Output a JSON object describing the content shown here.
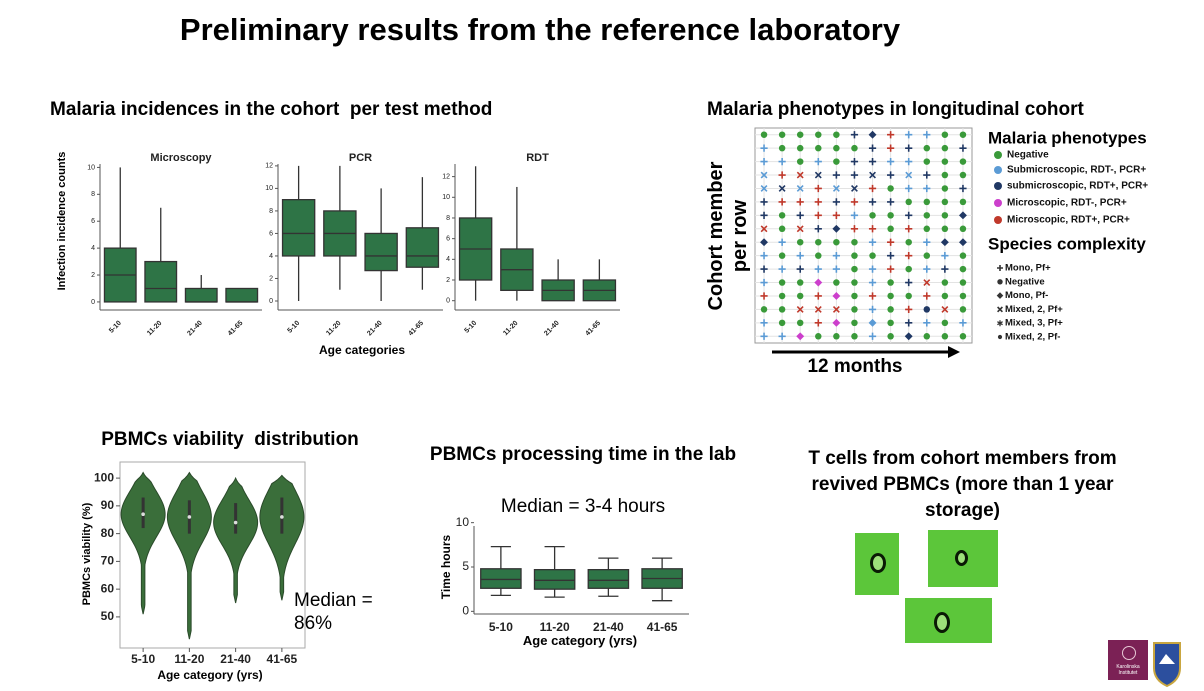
{
  "title": "Preliminary results from the reference laboratory",
  "incidence": {
    "title": "Malaria incidences in the cohort  per test method",
    "ylabel": "Infection incidence counts",
    "xlabel": "Age categories"
  },
  "tcells": {
    "title": "T cells from cohort members from revived PBMCs (more than 1 year storage)"
  },
  "logo": {
    "text": "Karolinska Institutet"
  },
  "chart_data": [
    {
      "type": "box",
      "title": "Microscopy",
      "categories": [
        "5-10",
        "11-20",
        "21-40",
        "41-65"
      ],
      "values": [
        [
          0,
          0,
          2,
          4,
          10
        ],
        [
          0,
          0,
          1,
          3,
          7
        ],
        [
          0,
          0,
          0,
          1,
          2
        ],
        [
          0,
          0,
          0,
          1,
          1
        ]
      ],
      "color": "#2e7446",
      "ylim": [
        -0.6,
        10.7
      ],
      "yticks": [
        0,
        2,
        4,
        6,
        8,
        10
      ]
    },
    {
      "type": "box",
      "title": "PCR",
      "categories": [
        "5-10",
        "11-20",
        "21-40",
        "41-65"
      ],
      "values": [
        [
          0,
          4,
          6,
          9,
          12
        ],
        [
          1,
          4,
          6,
          8,
          12
        ],
        [
          0,
          2.7,
          4,
          6,
          10
        ],
        [
          1,
          3,
          4,
          6.5,
          11
        ]
      ],
      "color": "#2e7446",
      "ylim": [
        -0.8,
        12.7
      ],
      "yticks": [
        0,
        2,
        4,
        6,
        8,
        10,
        12
      ]
    },
    {
      "type": "box",
      "title": "RDT",
      "categories": [
        "5-10",
        "11-20",
        "21-40",
        "41-65"
      ],
      "values": [
        [
          0,
          2,
          5,
          8,
          13
        ],
        [
          0,
          1,
          3,
          5,
          11
        ],
        [
          0,
          0,
          1,
          2,
          4
        ],
        [
          0,
          0,
          1,
          2,
          4
        ]
      ],
      "color": "#2e7446",
      "ylim": [
        -0.9,
        13.8
      ],
      "yticks": [
        0,
        2,
        4,
        6,
        8,
        10,
        12
      ]
    },
    {
      "type": "matrix",
      "title": "Malaria phenotypes in longitudinal cohort",
      "ylabel": "Cohort member per row",
      "xlabel": "12 months",
      "legend_title": "Malaria phenotypes",
      "phenotypes": [
        {
          "name": "Negative",
          "color": "#3a9a3a"
        },
        {
          "name": "Submicroscopic, RDT-, PCR+",
          "color": "#5b9bd5"
        },
        {
          "name": "submicroscopic, RDT+, PCR+",
          "color": "#203864"
        },
        {
          "name": "Microscopic, RDT-, PCR+",
          "color": "#cc3fcc"
        },
        {
          "name": "Microscopic, RDT+, PCR+",
          "color": "#c0392b"
        }
      ],
      "shape_legend_title": "Species complexity",
      "species": [
        {
          "name": "Mono, Pf+",
          "shape": "plus"
        },
        {
          "name": "Negative",
          "shape": "circle"
        },
        {
          "name": "Mono, Pf-",
          "shape": "diamond"
        },
        {
          "name": "Mixed, 2, Pf+",
          "shape": "cross"
        },
        {
          "name": "Mixed, 3, Pf+",
          "shape": "star"
        },
        {
          "name": "Mixed, 2, Pf-",
          "shape": "dot"
        }
      ],
      "cells": [
        [
          [
            0,
            1
          ],
          [
            0,
            1
          ],
          [
            0,
            1
          ],
          [
            0,
            1
          ],
          [
            0,
            1
          ],
          [
            2,
            0
          ],
          [
            2,
            2
          ],
          [
            4,
            0
          ],
          [
            1,
            0
          ],
          [
            1,
            0
          ],
          [
            0,
            1
          ],
          [
            0,
            1
          ]
        ],
        [
          [
            1,
            0
          ],
          [
            0,
            1
          ],
          [
            0,
            1
          ],
          [
            0,
            1
          ],
          [
            0,
            1
          ],
          [
            0,
            1
          ],
          [
            2,
            0
          ],
          [
            4,
            0
          ],
          [
            2,
            0
          ],
          [
            0,
            1
          ],
          [
            0,
            1
          ],
          [
            2,
            0
          ]
        ],
        [
          [
            1,
            0
          ],
          [
            1,
            0
          ],
          [
            0,
            1
          ],
          [
            1,
            0
          ],
          [
            0,
            1
          ],
          [
            2,
            0
          ],
          [
            2,
            0
          ],
          [
            1,
            0
          ],
          [
            1,
            0
          ],
          [
            0,
            1
          ],
          [
            0,
            1
          ],
          [
            0,
            1
          ]
        ],
        [
          [
            1,
            3
          ],
          [
            4,
            0
          ],
          [
            4,
            3
          ],
          [
            2,
            3
          ],
          [
            2,
            0
          ],
          [
            2,
            0
          ],
          [
            2,
            3
          ],
          [
            2,
            0
          ],
          [
            1,
            3
          ],
          [
            2,
            0
          ],
          [
            0,
            1
          ],
          [
            0,
            1
          ]
        ],
        [
          [
            1,
            3
          ],
          [
            2,
            3
          ],
          [
            1,
            3
          ],
          [
            4,
            0
          ],
          [
            1,
            3
          ],
          [
            2,
            3
          ],
          [
            4,
            0
          ],
          [
            0,
            1
          ],
          [
            1,
            0
          ],
          [
            1,
            0
          ],
          [
            0,
            1
          ],
          [
            2,
            0
          ]
        ],
        [
          [
            2,
            0
          ],
          [
            4,
            0
          ],
          [
            4,
            0
          ],
          [
            4,
            0
          ],
          [
            2,
            0
          ],
          [
            4,
            0
          ],
          [
            2,
            0
          ],
          [
            2,
            0
          ],
          [
            0,
            1
          ],
          [
            0,
            1
          ],
          [
            0,
            1
          ],
          [
            0,
            1
          ]
        ],
        [
          [
            2,
            0
          ],
          [
            0,
            1
          ],
          [
            2,
            0
          ],
          [
            4,
            0
          ],
          [
            4,
            0
          ],
          [
            1,
            0
          ],
          [
            0,
            1
          ],
          [
            0,
            1
          ],
          [
            2,
            0
          ],
          [
            0,
            1
          ],
          [
            0,
            1
          ],
          [
            2,
            2
          ]
        ],
        [
          [
            4,
            3
          ],
          [
            0,
            1
          ],
          [
            4,
            3
          ],
          [
            2,
            0
          ],
          [
            2,
            2
          ],
          [
            4,
            0
          ],
          [
            4,
            0
          ],
          [
            0,
            1
          ],
          [
            4,
            0
          ],
          [
            0,
            1
          ],
          [
            0,
            1
          ],
          [
            0,
            1
          ]
        ],
        [
          [
            2,
            2
          ],
          [
            1,
            0
          ],
          [
            0,
            1
          ],
          [
            0,
            1
          ],
          [
            0,
            1
          ],
          [
            0,
            1
          ],
          [
            1,
            0
          ],
          [
            4,
            0
          ],
          [
            0,
            1
          ],
          [
            1,
            0
          ],
          [
            2,
            2
          ],
          [
            2,
            2
          ]
        ],
        [
          [
            1,
            0
          ],
          [
            0,
            1
          ],
          [
            1,
            0
          ],
          [
            0,
            1
          ],
          [
            1,
            0
          ],
          [
            0,
            1
          ],
          [
            0,
            1
          ],
          [
            2,
            0
          ],
          [
            4,
            0
          ],
          [
            0,
            1
          ],
          [
            1,
            0
          ],
          [
            0,
            1
          ]
        ],
        [
          [
            2,
            0
          ],
          [
            1,
            0
          ],
          [
            2,
            0
          ],
          [
            1,
            0
          ],
          [
            1,
            0
          ],
          [
            0,
            1
          ],
          [
            1,
            0
          ],
          [
            4,
            0
          ],
          [
            0,
            1
          ],
          [
            1,
            0
          ],
          [
            2,
            0
          ],
          [
            0,
            1
          ]
        ],
        [
          [
            1,
            0
          ],
          [
            0,
            1
          ],
          [
            0,
            1
          ],
          [
            3,
            2
          ],
          [
            0,
            1
          ],
          [
            0,
            1
          ],
          [
            1,
            0
          ],
          [
            0,
            1
          ],
          [
            2,
            0
          ],
          [
            4,
            3
          ],
          [
            0,
            1
          ],
          [
            0,
            1
          ]
        ],
        [
          [
            4,
            0
          ],
          [
            0,
            1
          ],
          [
            0,
            1
          ],
          [
            4,
            0
          ],
          [
            3,
            2
          ],
          [
            0,
            1
          ],
          [
            4,
            0
          ],
          [
            0,
            1
          ],
          [
            0,
            1
          ],
          [
            4,
            0
          ],
          [
            0,
            1
          ],
          [
            0,
            1
          ]
        ],
        [
          [
            0,
            1
          ],
          [
            0,
            1
          ],
          [
            4,
            3
          ],
          [
            4,
            3
          ],
          [
            4,
            3
          ],
          [
            0,
            1
          ],
          [
            1,
            0
          ],
          [
            0,
            1
          ],
          [
            4,
            0
          ],
          [
            2,
            1
          ],
          [
            4,
            3
          ],
          [
            0,
            1
          ]
        ],
        [
          [
            1,
            0
          ],
          [
            0,
            1
          ],
          [
            0,
            1
          ],
          [
            4,
            0
          ],
          [
            3,
            2
          ],
          [
            0,
            1
          ],
          [
            1,
            2
          ],
          [
            0,
            1
          ],
          [
            2,
            0
          ],
          [
            1,
            0
          ],
          [
            0,
            1
          ],
          [
            1,
            0
          ]
        ],
        [
          [
            1,
            0
          ],
          [
            1,
            0
          ],
          [
            3,
            2
          ],
          [
            0,
            1
          ],
          [
            0,
            1
          ],
          [
            0,
            1
          ],
          [
            1,
            0
          ],
          [
            0,
            1
          ],
          [
            2,
            2
          ],
          [
            0,
            1
          ],
          [
            0,
            1
          ],
          [
            0,
            1
          ]
        ]
      ]
    },
    {
      "type": "violin",
      "title": "PBMCs viability  distribution",
      "ylabel": "PBMCs viability (%)",
      "xlabel": "Age category (yrs)",
      "annotation": "Median = 86%",
      "categories": [
        "5-10",
        "11-20",
        "21-40",
        "41-65"
      ],
      "values": [
        [
          51,
          82,
          87,
          93,
          102
        ],
        [
          42,
          80,
          86,
          92,
          102
        ],
        [
          55,
          80,
          84,
          91,
          100
        ],
        [
          56,
          80,
          86,
          93,
          101
        ]
      ],
      "color": "#3a6e3a",
      "ylim": [
        38.8,
        105.8
      ],
      "yticks": [
        50,
        60,
        70,
        80,
        90,
        100
      ]
    },
    {
      "type": "box",
      "title": "PBMCs processing time in the lab",
      "subtitle": "Median = 3-4 hours",
      "ylabel": "Time hours",
      "xlabel": "Age category (yrs)",
      "categories": [
        "5-10",
        "11-20",
        "21-40",
        "41-65"
      ],
      "values": [
        [
          1.8,
          2.6,
          3.6,
          4.8,
          7.3
        ],
        [
          1.6,
          2.5,
          3.5,
          4.7,
          7.3
        ],
        [
          1.7,
          2.6,
          3.5,
          4.7,
          6.0
        ],
        [
          1.2,
          2.6,
          3.7,
          4.8,
          6.0
        ]
      ],
      "color": "#2e7446",
      "ylim": [
        -0.3,
        10.3
      ],
      "yticks": [
        0,
        5,
        10
      ]
    }
  ]
}
